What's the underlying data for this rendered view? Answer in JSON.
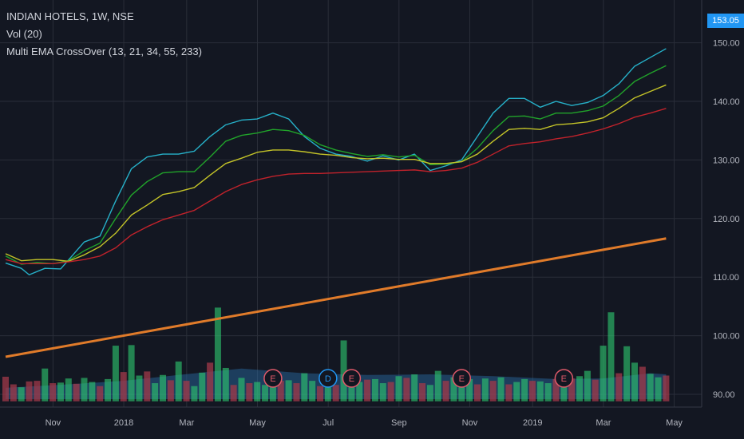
{
  "legend": {
    "symbol": "INDIAN HOTELS, 1W, NSE",
    "volume": "Vol (20)",
    "indicator": "Multi EMA CrossOver (13, 21, 34, 55, 233)"
  },
  "last_price": "153.05",
  "colors": {
    "background": "#131722",
    "grid": "#2a2e39",
    "axis_text": "#b2b5be",
    "ema13": "#26b1c9",
    "ema21": "#21a32a",
    "ema34": "#c4c428",
    "ema55": "#c0222b",
    "ema233": "#e07b2a",
    "vol_up": "#2ecc71",
    "vol_down": "#a13a4a",
    "vol_ma": "#2a6ea8",
    "event_earnings": "#e05a6a",
    "event_dividend": "#2196f3",
    "price_tag": "#2196f3"
  },
  "chart_data": {
    "type": "line",
    "title": "INDIAN HOTELS, 1W, NSE",
    "x_tick_labels": [
      "Nov",
      "2018",
      "Mar",
      "May",
      "Jul",
      "Sep",
      "Nov",
      "2019",
      "Mar",
      "May"
    ],
    "x_tick_weeks": [
      4,
      13,
      21,
      30,
      39,
      48,
      57,
      65,
      74,
      83
    ],
    "y_tick_labels": [
      "90.00",
      "100.00",
      "110.00",
      "120.00",
      "130.00",
      "140.00",
      "150.00"
    ],
    "y_ticks": [
      90,
      100,
      110,
      120,
      130,
      140,
      150
    ],
    "ylim": [
      88.8,
      156
    ],
    "week_start_date": "2017-09-17",
    "series": [
      {
        "name": "EMA 13",
        "key": "ema13",
        "points": [
          [
            0,
            112.4
          ],
          [
            2,
            111.5
          ],
          [
            3,
            110.4
          ],
          [
            5,
            111.5
          ],
          [
            7,
            111.4
          ],
          [
            10,
            116
          ],
          [
            12,
            117
          ],
          [
            14,
            123
          ],
          [
            16,
            128.5
          ],
          [
            18,
            130.5
          ],
          [
            20,
            131
          ],
          [
            22,
            131
          ],
          [
            24,
            131.5
          ],
          [
            26,
            134
          ],
          [
            28,
            136
          ],
          [
            30,
            136.8
          ],
          [
            32,
            137
          ],
          [
            34,
            138
          ],
          [
            36,
            137
          ],
          [
            38,
            134
          ],
          [
            40,
            132
          ],
          [
            42,
            131
          ],
          [
            44,
            130.6
          ],
          [
            46,
            129.8
          ],
          [
            48,
            130.7
          ],
          [
            50,
            130
          ],
          [
            52,
            131
          ],
          [
            54,
            128.2
          ],
          [
            56,
            129
          ],
          [
            58,
            130
          ],
          [
            60,
            134
          ],
          [
            62,
            138
          ],
          [
            64,
            140.5
          ],
          [
            66,
            140.5
          ],
          [
            68,
            139
          ],
          [
            70,
            140
          ],
          [
            72,
            139.3
          ],
          [
            74,
            139.8
          ],
          [
            76,
            141
          ],
          [
            78,
            143
          ],
          [
            80,
            146
          ],
          [
            82,
            147.5
          ],
          [
            84,
            149
          ]
        ]
      },
      {
        "name": "EMA 21",
        "key": "ema21",
        "points": [
          [
            0,
            113.6
          ],
          [
            2,
            112.2
          ],
          [
            4,
            112.5
          ],
          [
            6,
            112.3
          ],
          [
            8,
            112.8
          ],
          [
            10,
            114.5
          ],
          [
            12,
            115.8
          ],
          [
            14,
            120
          ],
          [
            16,
            124
          ],
          [
            18,
            126.3
          ],
          [
            20,
            127.8
          ],
          [
            22,
            128
          ],
          [
            24,
            128
          ],
          [
            26,
            130.5
          ],
          [
            28,
            133.2
          ],
          [
            30,
            134.2
          ],
          [
            32,
            134.6
          ],
          [
            34,
            135.2
          ],
          [
            36,
            135
          ],
          [
            38,
            134.2
          ],
          [
            40,
            132.6
          ],
          [
            42,
            131.7
          ],
          [
            44,
            131.1
          ],
          [
            46,
            130.6
          ],
          [
            48,
            130.9
          ],
          [
            50,
            130.5
          ],
          [
            52,
            130.8
          ],
          [
            54,
            129.2
          ],
          [
            56,
            129.3
          ],
          [
            58,
            129.7
          ],
          [
            60,
            132
          ],
          [
            62,
            135
          ],
          [
            64,
            137.4
          ],
          [
            66,
            137.5
          ],
          [
            68,
            137
          ],
          [
            70,
            138
          ],
          [
            72,
            138
          ],
          [
            74,
            138.4
          ],
          [
            76,
            139.2
          ],
          [
            78,
            141
          ],
          [
            80,
            143.4
          ],
          [
            82,
            144.8
          ],
          [
            84,
            146.1
          ]
        ]
      },
      {
        "name": "EMA 34",
        "key": "ema34",
        "points": [
          [
            0,
            114
          ],
          [
            2,
            112.8
          ],
          [
            4,
            113
          ],
          [
            6,
            113
          ],
          [
            8,
            112.7
          ],
          [
            10,
            113.8
          ],
          [
            12,
            115.2
          ],
          [
            14,
            117.5
          ],
          [
            16,
            120.6
          ],
          [
            18,
            122.3
          ],
          [
            20,
            124.1
          ],
          [
            22,
            124.6
          ],
          [
            24,
            125.3
          ],
          [
            26,
            127.4
          ],
          [
            28,
            129.4
          ],
          [
            30,
            130.3
          ],
          [
            32,
            131.3
          ],
          [
            34,
            131.7
          ],
          [
            36,
            131.7
          ],
          [
            38,
            131.4
          ],
          [
            40,
            131
          ],
          [
            42,
            130.8
          ],
          [
            44,
            130.4
          ],
          [
            46,
            130.2
          ],
          [
            48,
            130.3
          ],
          [
            50,
            130.1
          ],
          [
            52,
            130.1
          ],
          [
            54,
            129.4
          ],
          [
            56,
            129.4
          ],
          [
            58,
            129.7
          ],
          [
            60,
            131
          ],
          [
            62,
            133.2
          ],
          [
            64,
            135.2
          ],
          [
            66,
            135.4
          ],
          [
            68,
            135.2
          ],
          [
            70,
            136
          ],
          [
            72,
            136.2
          ],
          [
            74,
            136.5
          ],
          [
            76,
            137.2
          ],
          [
            78,
            138.8
          ],
          [
            80,
            140.6
          ],
          [
            82,
            141.7
          ],
          [
            84,
            142.8
          ]
        ]
      },
      {
        "name": "EMA 55",
        "key": "ema55",
        "points": [
          [
            0,
            113
          ],
          [
            2,
            112.3
          ],
          [
            4,
            112.3
          ],
          [
            6,
            112.3
          ],
          [
            8,
            112.6
          ],
          [
            10,
            113
          ],
          [
            12,
            113.6
          ],
          [
            14,
            115
          ],
          [
            16,
            117.2
          ],
          [
            18,
            118.6
          ],
          [
            20,
            119.8
          ],
          [
            22,
            120.6
          ],
          [
            24,
            121.4
          ],
          [
            26,
            123
          ],
          [
            28,
            124.6
          ],
          [
            30,
            125.8
          ],
          [
            32,
            126.6
          ],
          [
            34,
            127.2
          ],
          [
            36,
            127.6
          ],
          [
            38,
            127.7
          ],
          [
            40,
            127.7
          ],
          [
            42,
            127.8
          ],
          [
            44,
            127.9
          ],
          [
            46,
            128
          ],
          [
            48,
            128.1
          ],
          [
            50,
            128.2
          ],
          [
            52,
            128.3
          ],
          [
            54,
            128
          ],
          [
            56,
            128.2
          ],
          [
            58,
            128.6
          ],
          [
            60,
            129.6
          ],
          [
            62,
            131
          ],
          [
            64,
            132.4
          ],
          [
            66,
            132.8
          ],
          [
            68,
            133.1
          ],
          [
            70,
            133.6
          ],
          [
            72,
            134
          ],
          [
            74,
            134.6
          ],
          [
            76,
            135.3
          ],
          [
            78,
            136.2
          ],
          [
            80,
            137.3
          ],
          [
            82,
            138
          ],
          [
            84,
            138.8
          ]
        ]
      },
      {
        "name": "EMA 233",
        "key": "ema233",
        "points": [
          [
            0,
            96.4
          ],
          [
            84,
            116.6
          ]
        ]
      }
    ],
    "volume": {
      "bars": [
        [
          0,
          93
        ],
        [
          1,
          91.7
        ],
        [
          2,
          91.2
        ],
        [
          3,
          92.2
        ],
        [
          4,
          92.3
        ],
        [
          5,
          94.4
        ],
        [
          6,
          91.9
        ],
        [
          7,
          92
        ],
        [
          8,
          92.7
        ],
        [
          9,
          91.8
        ],
        [
          10,
          92.8
        ],
        [
          11,
          92.1
        ],
        [
          12,
          91.4
        ],
        [
          13,
          92.6
        ],
        [
          14,
          98.3
        ],
        [
          15,
          93.8
        ],
        [
          16,
          98.4
        ],
        [
          17,
          93.2
        ],
        [
          18,
          93.9
        ],
        [
          19,
          91.9
        ],
        [
          20,
          93.3
        ],
        [
          21,
          92.4
        ],
        [
          22,
          95.6
        ],
        [
          23,
          92.3
        ],
        [
          24,
          91.4
        ],
        [
          25,
          93.7
        ],
        [
          26,
          95.4
        ],
        [
          27,
          104.8
        ],
        [
          28,
          94.5
        ],
        [
          29,
          91.6
        ],
        [
          30,
          92.8
        ],
        [
          31,
          91.9
        ],
        [
          32,
          92.1
        ],
        [
          33,
          91.6
        ],
        [
          34,
          92.1
        ],
        [
          35,
          92.3
        ],
        [
          36,
          92.4
        ],
        [
          37,
          91.9
        ],
        [
          38,
          93.6
        ],
        [
          39,
          92.3
        ],
        [
          40,
          91.4
        ],
        [
          41,
          91.8
        ],
        [
          42,
          91.6
        ],
        [
          43,
          99.2
        ],
        [
          44,
          93.4
        ],
        [
          45,
          92.1
        ],
        [
          46,
          92.5
        ],
        [
          47,
          92.6
        ],
        [
          48,
          91.9
        ],
        [
          49,
          92.1
        ],
        [
          50,
          93.1
        ],
        [
          51,
          92.8
        ],
        [
          52,
          93.4
        ],
        [
          53,
          91.9
        ],
        [
          54,
          91.6
        ],
        [
          55,
          94
        ],
        [
          56,
          92.3
        ],
        [
          57,
          92.9
        ],
        [
          58,
          91.9
        ],
        [
          59,
          92.6
        ],
        [
          60,
          91.7
        ],
        [
          61,
          92.7
        ],
        [
          62,
          92.3
        ],
        [
          63,
          92.9
        ],
        [
          64,
          91.7
        ],
        [
          65,
          92.1
        ],
        [
          66,
          92.6
        ],
        [
          67,
          92.3
        ],
        [
          68,
          92.2
        ],
        [
          69,
          91.9
        ],
        [
          70,
          92.6
        ],
        [
          71,
          92.3
        ],
        [
          72,
          92.7
        ],
        [
          73,
          93.1
        ],
        [
          74,
          94
        ],
        [
          75,
          92.5
        ],
        [
          76,
          98.3
        ],
        [
          77,
          104
        ],
        [
          78,
          93.6
        ],
        [
          79,
          98.2
        ],
        [
          80,
          95.4
        ],
        [
          81,
          94.7
        ],
        [
          82,
          93.5
        ],
        [
          83,
          92.9
        ],
        [
          84,
          93.2
        ]
      ],
      "down_weeks": [
        0,
        1,
        3,
        4,
        6,
        9,
        12,
        15,
        18,
        21,
        23,
        26,
        29,
        31,
        35,
        37,
        40,
        42,
        46,
        49,
        51,
        53,
        56,
        60,
        62,
        64,
        67,
        70,
        72,
        75,
        78,
        81,
        84
      ],
      "ma20": [
        [
          0,
          91.1
        ],
        [
          8,
          91.7
        ],
        [
          15,
          92.3
        ],
        [
          22,
          93.3
        ],
        [
          30,
          94.4
        ],
        [
          38,
          93.6
        ],
        [
          46,
          93.3
        ],
        [
          54,
          93.4
        ],
        [
          62,
          93.1
        ],
        [
          70,
          92.6
        ],
        [
          76,
          92.7
        ],
        [
          82,
          93.6
        ],
        [
          84,
          93.4
        ]
      ]
    },
    "events": [
      {
        "week": 34,
        "label": "E",
        "kind": "earnings"
      },
      {
        "week": 41,
        "label": "D",
        "kind": "dividend"
      },
      {
        "week": 44,
        "label": "E",
        "kind": "earnings"
      },
      {
        "week": 58,
        "label": "E",
        "kind": "earnings"
      },
      {
        "week": 71,
        "label": "E",
        "kind": "earnings"
      }
    ]
  }
}
